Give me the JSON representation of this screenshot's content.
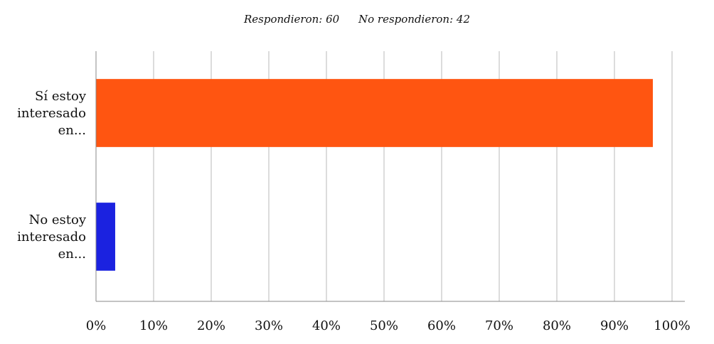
{
  "summary": {
    "answered": "Respondieron: 60",
    "skipped": "No respondieron: 42"
  },
  "chart_data": {
    "type": "bar",
    "orientation": "horizontal",
    "categories": [
      [
        "Sí estoy",
        "interesado",
        "en..."
      ],
      [
        "No estoy",
        "interesado",
        "en..."
      ]
    ],
    "values": [
      96.67,
      3.33
    ],
    "colors": [
      "#ff5511",
      "#1b22e0"
    ],
    "xlim": [
      0,
      100
    ],
    "ticks": [
      "0%",
      "10%",
      "20%",
      "30%",
      "40%",
      "50%",
      "60%",
      "70%",
      "80%",
      "90%",
      "100%"
    ],
    "grid": true,
    "legend": "none"
  }
}
